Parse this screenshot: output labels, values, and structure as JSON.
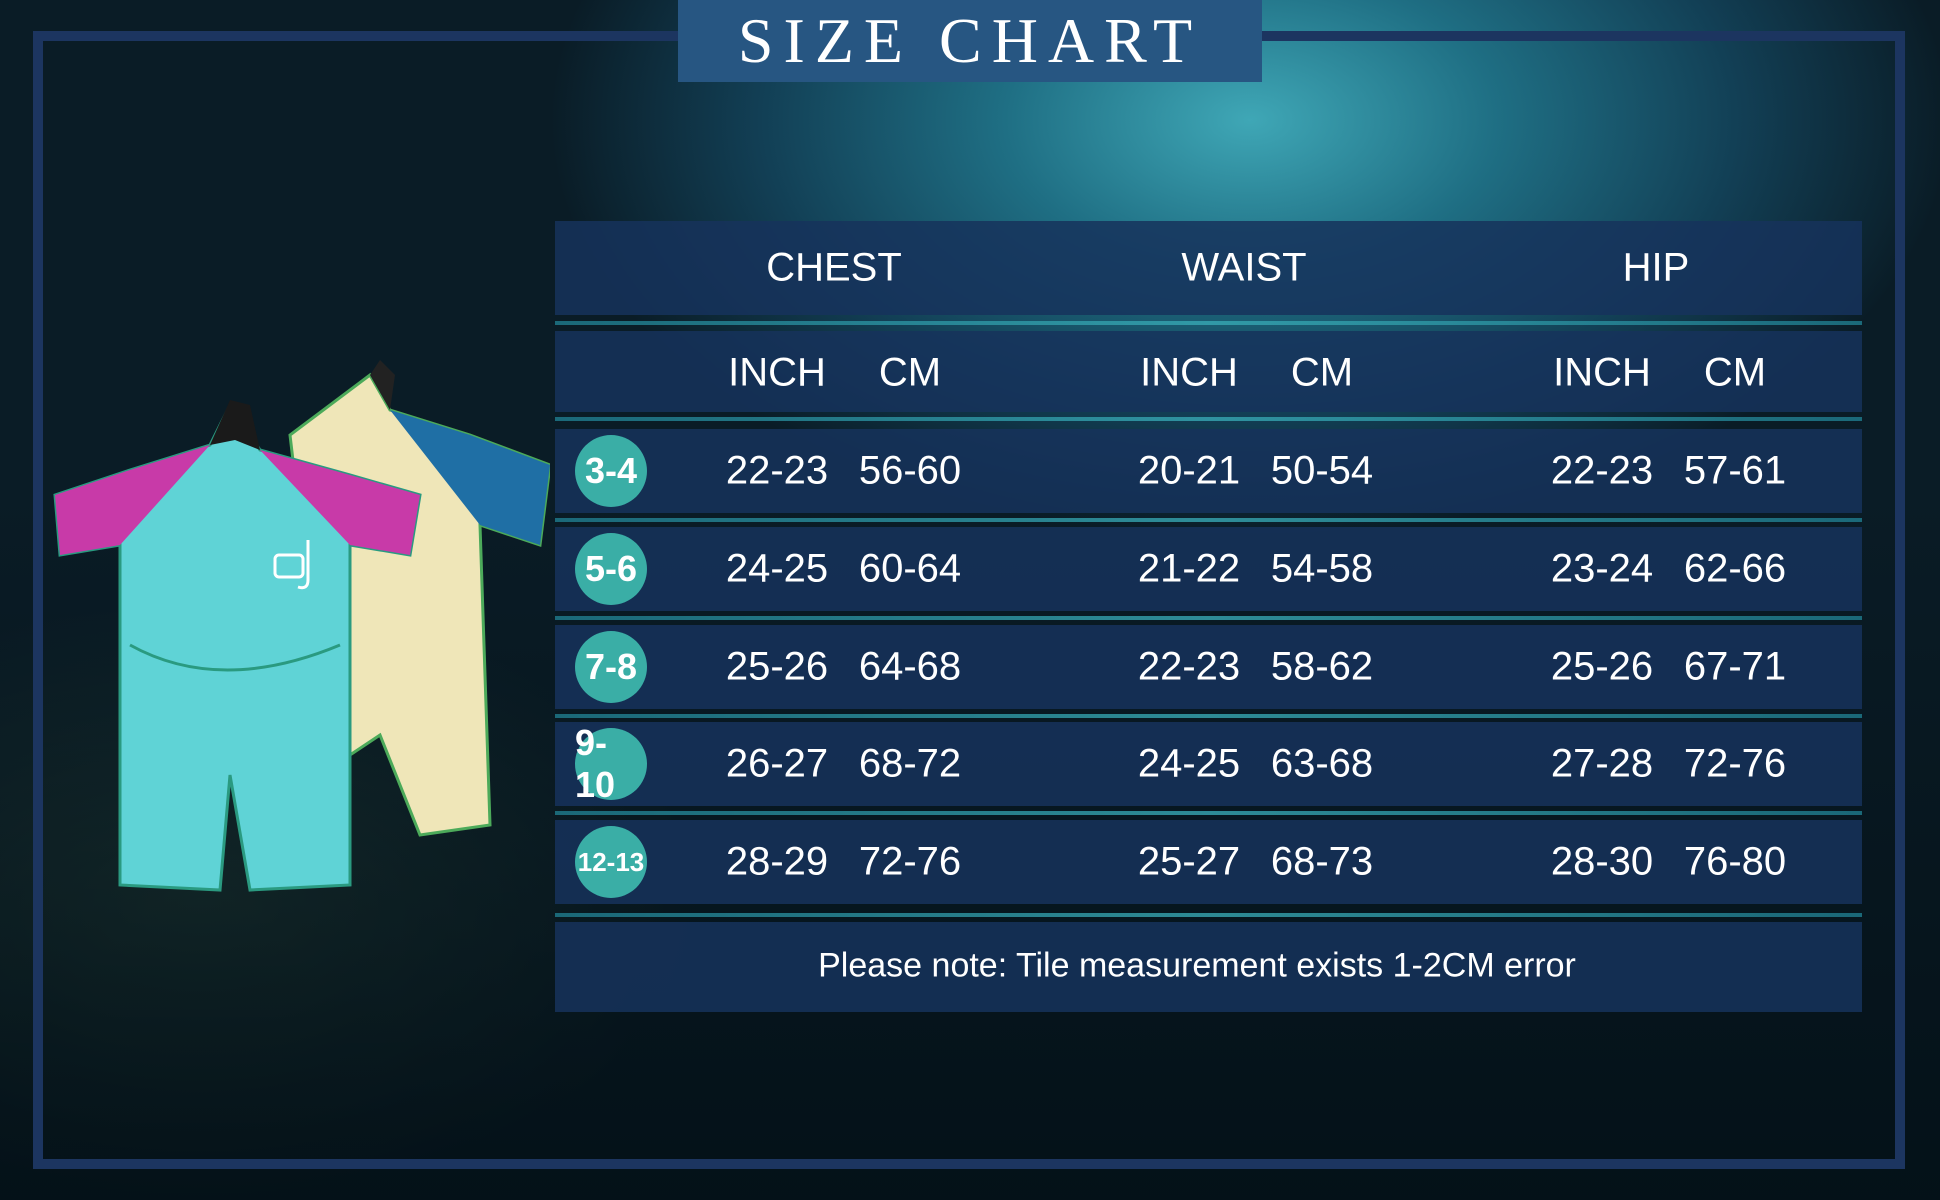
{
  "title": "SIZE CHART",
  "groups": [
    "CHEST",
    "WAIST",
    "HIP"
  ],
  "units": [
    "INCH",
    "CM",
    "INCH",
    "CM",
    "INCH",
    "CM"
  ],
  "rows": [
    {
      "size": "3-4",
      "values": [
        "22-23",
        "56-60",
        "20-21",
        "50-54",
        "22-23",
        "57-61"
      ]
    },
    {
      "size": "5-6",
      "values": [
        "24-25",
        "60-64",
        "21-22",
        "54-58",
        "23-24",
        "62-66"
      ]
    },
    {
      "size": "7-8",
      "values": [
        "25-26",
        "64-68",
        "22-23",
        "58-62",
        "25-26",
        "67-71"
      ]
    },
    {
      "size": "9-10",
      "values": [
        "26-27",
        "68-72",
        "24-25",
        "63-68",
        "27-28",
        "72-76"
      ]
    },
    {
      "size": "12-13",
      "values": [
        "28-29",
        "72-76",
        "25-27",
        "68-73",
        "28-30",
        "76-80"
      ]
    }
  ],
  "note": "Please note: Tile measurement exists 1-2CM error",
  "colors": {
    "frame": "#1c3560",
    "title_bg": "#275682",
    "band": "#16325c",
    "badge": "#3aaea6",
    "suit_front": "#5fd3d6",
    "suit_front_sleeve": "#c83aa8",
    "suit_back": "#efe6b8",
    "suit_back_sleeve": "#1f6fa5"
  }
}
